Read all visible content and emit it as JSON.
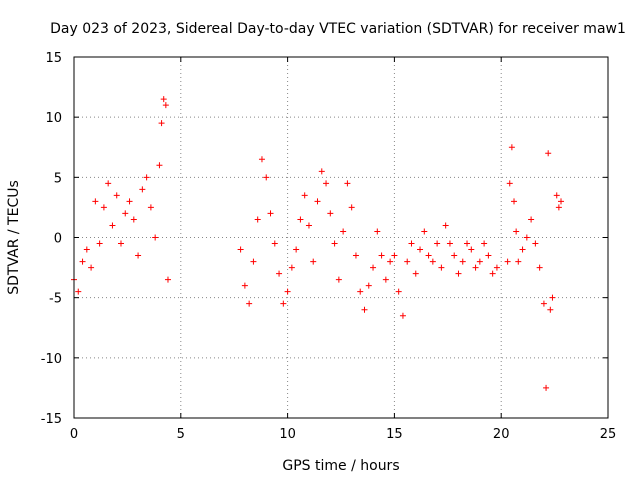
{
  "chart_data": {
    "type": "scatter",
    "title": "Day 023 of 2023, Sidereal Day-to-day VTEC variation (SDTVAR) for receiver maw1",
    "xlabel": "GPS time / hours",
    "ylabel": "SDTVAR / TECUs",
    "xlim": [
      0,
      25
    ],
    "ylim": [
      -15,
      15
    ],
    "xticks": [
      "0",
      "5",
      "10",
      "15",
      "20",
      "25"
    ],
    "yticks": [
      "15",
      "10",
      "5",
      "0",
      "-5",
      "-10",
      "-15"
    ],
    "grid": true,
    "marker": "plus",
    "color": "#ff0000",
    "series": [
      {
        "name": "SDTVAR",
        "x": [
          0.0,
          0.2,
          0.4,
          0.6,
          0.8,
          1.0,
          1.2,
          1.4,
          1.6,
          1.8,
          2.0,
          2.2,
          2.4,
          2.6,
          2.8,
          3.0,
          3.2,
          3.4,
          3.6,
          3.8,
          4.0,
          4.1,
          4.2,
          4.3,
          4.4,
          7.8,
          8.0,
          8.2,
          8.4,
          8.6,
          8.8,
          9.0,
          9.2,
          9.4,
          9.6,
          9.8,
          10.0,
          10.2,
          10.4,
          10.6,
          10.8,
          11.0,
          11.2,
          11.4,
          11.6,
          11.8,
          12.0,
          12.2,
          12.4,
          12.6,
          12.8,
          13.0,
          13.2,
          13.4,
          13.6,
          13.8,
          14.0,
          14.2,
          14.4,
          14.6,
          14.8,
          15.0,
          15.2,
          15.4,
          15.6,
          15.8,
          16.0,
          16.2,
          16.4,
          16.6,
          16.8,
          17.0,
          17.2,
          17.4,
          17.6,
          17.8,
          18.0,
          18.2,
          18.4,
          18.6,
          18.8,
          19.0,
          19.2,
          19.4,
          19.6,
          19.8,
          20.3,
          20.4,
          20.5,
          20.6,
          20.7,
          20.8,
          21.0,
          21.2,
          21.4,
          21.6,
          21.8,
          22.0,
          22.1,
          22.2,
          22.3,
          22.4,
          22.6,
          22.7,
          22.8
        ],
        "y": [
          -3.5,
          -4.5,
          -2.0,
          -1.0,
          -2.5,
          3.0,
          -0.5,
          2.5,
          4.5,
          1.0,
          3.5,
          -0.5,
          2.0,
          3.0,
          1.5,
          -1.5,
          4.0,
          5.0,
          2.5,
          0.0,
          6.0,
          9.5,
          11.5,
          11.0,
          -3.5,
          -1.0,
          -4.0,
          -5.5,
          -2.0,
          1.5,
          6.5,
          5.0,
          2.0,
          -0.5,
          -3.0,
          -5.5,
          -4.5,
          -2.5,
          -1.0,
          1.5,
          3.5,
          1.0,
          -2.0,
          3.0,
          5.5,
          4.5,
          2.0,
          -0.5,
          -3.5,
          0.5,
          4.5,
          2.5,
          -1.5,
          -4.5,
          -6.0,
          -4.0,
          -2.5,
          0.5,
          -1.5,
          -3.5,
          -2.0,
          -1.5,
          -4.5,
          -6.5,
          -2.0,
          -0.5,
          -3.0,
          -1.0,
          0.5,
          -1.5,
          -2.0,
          -0.5,
          -2.5,
          1.0,
          -0.5,
          -1.5,
          -3.0,
          -2.0,
          -0.5,
          -1.0,
          -2.5,
          -2.0,
          -0.5,
          -1.5,
          -3.0,
          -2.5,
          -2.0,
          4.5,
          7.5,
          3.0,
          0.5,
          -2.0,
          -1.0,
          0.0,
          1.5,
          -0.5,
          -2.5,
          -5.5,
          -12.5,
          7.0,
          -6.0,
          -5.0,
          3.5,
          2.5,
          3.0
        ]
      }
    ]
  }
}
